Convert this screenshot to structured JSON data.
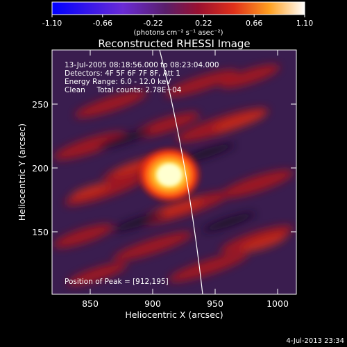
{
  "colorbar": {
    "ticks": [
      "-1.10",
      "-0.66",
      "-0.22",
      "0.22",
      "0.66",
      "1.10"
    ],
    "units_label": "(photons cm⁻² s⁻¹ asec⁻²)"
  },
  "image": {
    "title": "Reconstructed RHESSI Image",
    "info_lines": [
      "13-Jul-2005 08:18:56.000 to 08:23:04.000",
      "Detectors: 4F 5F 6F 7F 8F, Att 1",
      "Energy Range: 6.0 - 12.0 keV",
      "Clean     Total counts: 2.78E+04"
    ],
    "peak_text": "Position of Peak = [912,195]",
    "x_axis": {
      "label": "Heliocentric X (arcsec)",
      "ticks": [
        "850",
        "900",
        "950",
        "1000"
      ]
    },
    "y_axis": {
      "label": "Heliocentric Y (arcsec)",
      "ticks": [
        "150",
        "200",
        "250"
      ]
    },
    "colors": {
      "background_purple": "#3a1d4f",
      "mid_red": "#b8141a",
      "hot_yellow": "#ffff99"
    }
  },
  "footer": {
    "timestamp": "4-Jul-2013 23:34"
  }
}
